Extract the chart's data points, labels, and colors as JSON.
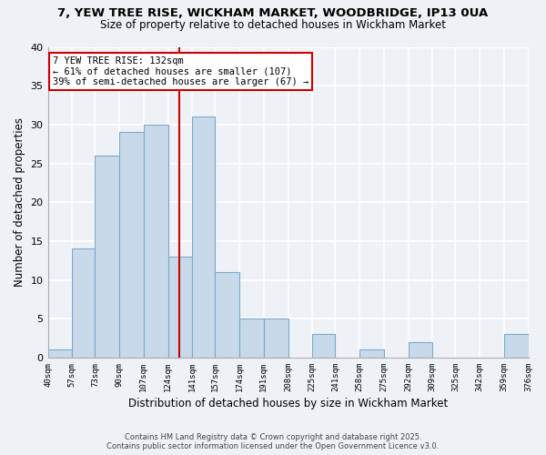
{
  "title1": "7, YEW TREE RISE, WICKHAM MARKET, WOODBRIDGE, IP13 0UA",
  "title2": "Size of property relative to detached houses in Wickham Market",
  "xlabel": "Distribution of detached houses by size in Wickham Market",
  "ylabel": "Number of detached properties",
  "bar_color": "#c8daea",
  "bar_edgecolor": "#7aaac8",
  "background_color": "#eef2f7",
  "grid_color": "#ffffff",
  "bins": [
    40,
    57,
    73,
    90,
    107,
    124,
    141,
    157,
    174,
    191,
    208,
    225,
    241,
    258,
    275,
    292,
    309,
    325,
    342,
    359,
    376
  ],
  "counts": [
    1,
    14,
    26,
    29,
    30,
    13,
    31,
    11,
    5,
    5,
    0,
    3,
    0,
    1,
    0,
    2,
    0,
    0,
    0,
    3
  ],
  "tick_labels": [
    "40sqm",
    "57sqm",
    "73sqm",
    "90sqm",
    "107sqm",
    "124sqm",
    "141sqm",
    "157sqm",
    "174sqm",
    "191sqm",
    "208sqm",
    "225sqm",
    "241sqm",
    "258sqm",
    "275sqm",
    "292sqm",
    "309sqm",
    "325sqm",
    "342sqm",
    "359sqm",
    "376sqm"
  ],
  "vline_x": 132,
  "vline_color": "#cc0000",
  "annotation_text": "7 YEW TREE RISE: 132sqm\n← 61% of detached houses are smaller (107)\n39% of semi-detached houses are larger (67) →",
  "annotation_box_edgecolor": "#cc0000",
  "ylim": [
    0,
    40
  ],
  "yticks": [
    0,
    5,
    10,
    15,
    20,
    25,
    30,
    35,
    40
  ],
  "footer1": "Contains HM Land Registry data © Crown copyright and database right 2025.",
  "footer2": "Contains public sector information licensed under the Open Government Licence v3.0."
}
